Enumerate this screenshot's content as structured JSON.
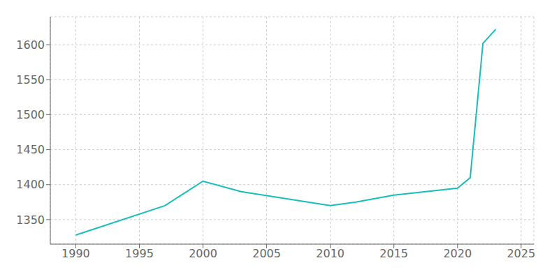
{
  "chart_data": {
    "type": "line",
    "x": [
      1990,
      1997,
      2000,
      2003,
      2010,
      2012,
      2015,
      2020,
      2021,
      2022,
      2023
    ],
    "values": [
      1328,
      1370,
      1405,
      1390,
      1370,
      1375,
      1385,
      1395,
      1410,
      1602,
      1622
    ],
    "color": "#17BEBB",
    "xlim": [
      1988,
      2026
    ],
    "ylim": [
      1315,
      1640
    ],
    "xticks": [
      1990,
      1995,
      2000,
      2005,
      2010,
      2015,
      2020,
      2025
    ],
    "yticks": [
      1350,
      1400,
      1450,
      1500,
      1550,
      1600
    ],
    "grid": true
  }
}
